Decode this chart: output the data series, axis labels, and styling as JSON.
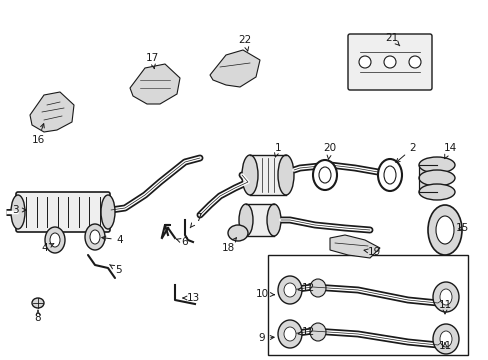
{
  "bg_color": "#ffffff",
  "line_color": "#1a1a1a",
  "fig_width": 4.89,
  "fig_height": 3.6,
  "dpi": 100,
  "gray_fill": "#d8d8d8",
  "light_fill": "#efefef",
  "white": "#ffffff"
}
